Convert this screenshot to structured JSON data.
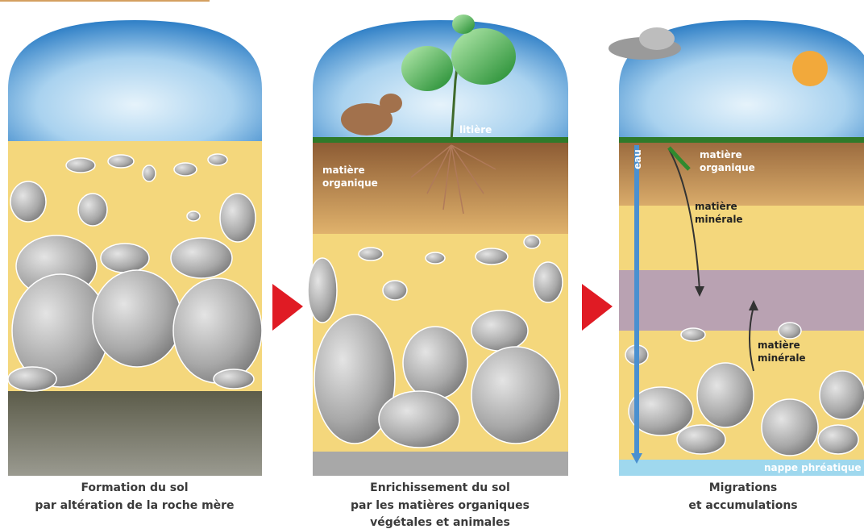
{
  "panels": [
    {
      "caption": [
        "Formation du sol",
        "par altération de la roche mère"
      ]
    },
    {
      "labels": {
        "litter": "litière",
        "organic": [
          "matière",
          "organique"
        ]
      },
      "caption": [
        "Enrichissement du sol",
        "par les matières organiques",
        "végétales et animales"
      ]
    },
    {
      "labels": {
        "water": "eau",
        "organic": [
          "matière",
          "organique"
        ],
        "mineral_down": [
          "matière",
          "minérale"
        ],
        "mineral_up": [
          "matière",
          "minérale"
        ],
        "water_table": "nappe phréatique"
      },
      "caption": [
        "Migrations",
        "et accumulations"
      ]
    }
  ]
}
